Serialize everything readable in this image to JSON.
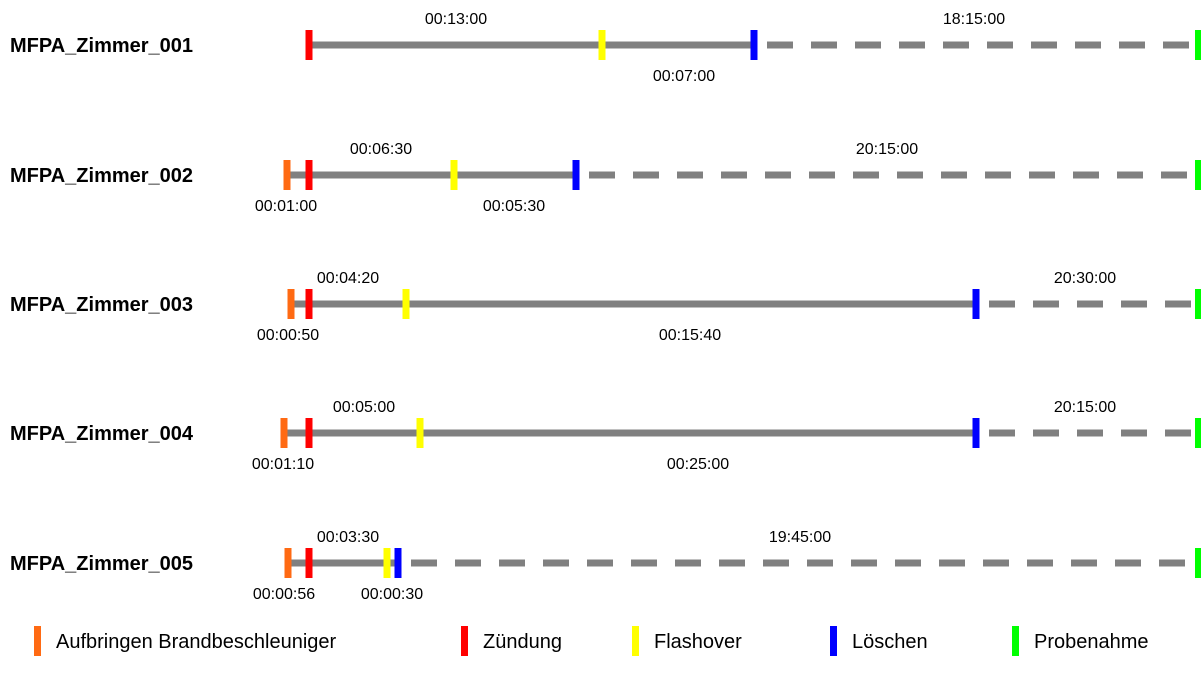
{
  "chart_data": {
    "type": "timeline",
    "title": "",
    "event_types": [
      {
        "key": "accelerant",
        "label": "Aufbringen Brandbeschleuniger",
        "color": "#ff6a13"
      },
      {
        "key": "ignition",
        "label": "Zündung",
        "color": "#ff0000"
      },
      {
        "key": "flashover",
        "label": "Flashover",
        "color": "#ffff00"
      },
      {
        "key": "extinguish",
        "label": "Löschen",
        "color": "#0000ff"
      },
      {
        "key": "sampling",
        "label": "Probenahme",
        "color": "#00ff00"
      }
    ],
    "colors": {
      "solid_line": "#808080",
      "dashed_line": "#808080"
    },
    "rows": [
      {
        "name": "MFPA_Zimmer_001",
        "intervals": [
          {
            "from": "ignition",
            "to": "flashover",
            "duration": "00:13:00",
            "label_pos": "above"
          },
          {
            "from": "flashover",
            "to": "extinguish",
            "duration": "00:07:00",
            "label_pos": "below"
          },
          {
            "from": "extinguish",
            "to": "sampling",
            "duration": "18:15:00",
            "label_pos": "above",
            "dashed": true
          }
        ]
      },
      {
        "name": "MFPA_Zimmer_002",
        "intervals": [
          {
            "from": "accelerant",
            "to": "ignition",
            "duration": "00:01:00",
            "label_pos": "below"
          },
          {
            "from": "ignition",
            "to": "flashover",
            "duration": "00:06:30",
            "label_pos": "above"
          },
          {
            "from": "flashover",
            "to": "extinguish",
            "duration": "00:05:30",
            "label_pos": "below"
          },
          {
            "from": "extinguish",
            "to": "sampling",
            "duration": "20:15:00",
            "label_pos": "above",
            "dashed": true
          }
        ]
      },
      {
        "name": "MFPA_Zimmer_003",
        "intervals": [
          {
            "from": "accelerant",
            "to": "ignition",
            "duration": "00:00:50",
            "label_pos": "below"
          },
          {
            "from": "ignition",
            "to": "flashover",
            "duration": "00:04:20",
            "label_pos": "above"
          },
          {
            "from": "flashover",
            "to": "extinguish",
            "duration": "00:15:40",
            "label_pos": "below"
          },
          {
            "from": "extinguish",
            "to": "sampling",
            "duration": "20:30:00",
            "label_pos": "above",
            "dashed": true
          }
        ]
      },
      {
        "name": "MFPA_Zimmer_004",
        "intervals": [
          {
            "from": "accelerant",
            "to": "ignition",
            "duration": "00:01:10",
            "label_pos": "below"
          },
          {
            "from": "ignition",
            "to": "flashover",
            "duration": "00:05:00",
            "label_pos": "above"
          },
          {
            "from": "flashover",
            "to": "extinguish",
            "duration": "00:25:00",
            "label_pos": "below"
          },
          {
            "from": "extinguish",
            "to": "sampling",
            "duration": "20:15:00",
            "label_pos": "above",
            "dashed": true
          }
        ]
      },
      {
        "name": "MFPA_Zimmer_005",
        "intervals": [
          {
            "from": "accelerant",
            "to": "ignition",
            "duration": "00:00:56",
            "label_pos": "below"
          },
          {
            "from": "ignition",
            "to": "flashover",
            "duration": "00:03:30",
            "label_pos": "above"
          },
          {
            "from": "flashover",
            "to": "extinguish",
            "duration": "00:00:30",
            "label_pos": "below"
          },
          {
            "from": "extinguish",
            "to": "sampling",
            "duration": "19:45:00",
            "label_pos": "above",
            "dashed": true
          }
        ]
      }
    ]
  }
}
